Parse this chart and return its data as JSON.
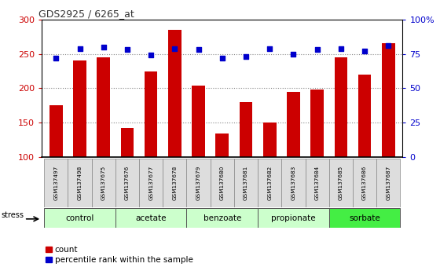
{
  "title": "GDS2925 / 6265_at",
  "samples": [
    "GSM137497",
    "GSM137498",
    "GSM137675",
    "GSM137676",
    "GSM137677",
    "GSM137678",
    "GSM137679",
    "GSM137680",
    "GSM137681",
    "GSM137682",
    "GSM137683",
    "GSM137684",
    "GSM137685",
    "GSM137686",
    "GSM137687"
  ],
  "counts": [
    175,
    240,
    245,
    142,
    224,
    285,
    204,
    134,
    180,
    150,
    195,
    198,
    245,
    220,
    265
  ],
  "percentiles": [
    72,
    79,
    80,
    78,
    74,
    79,
    78,
    72,
    73,
    79,
    75,
    78,
    79,
    77,
    81
  ],
  "groups": [
    {
      "name": "control",
      "start": 0,
      "end": 3
    },
    {
      "name": "acetate",
      "start": 3,
      "end": 6
    },
    {
      "name": "benzoate",
      "start": 6,
      "end": 9
    },
    {
      "name": "propionate",
      "start": 9,
      "end": 12
    },
    {
      "name": "sorbate",
      "start": 12,
      "end": 15
    }
  ],
  "bar_color": "#cc0000",
  "dot_color": "#0000cc",
  "left_ylim": [
    100,
    300
  ],
  "left_yticks": [
    100,
    150,
    200,
    250,
    300
  ],
  "right_ylim": [
    0,
    100
  ],
  "right_yticks": [
    0,
    25,
    50,
    75,
    100
  ],
  "right_yticklabels": [
    "0",
    "25",
    "50",
    "75",
    "100%"
  ],
  "hlines": [
    150,
    200,
    250
  ],
  "title_color": "#333333",
  "left_tick_color": "#cc0000",
  "right_tick_color": "#0000cc",
  "group_color_light": "#ccffcc",
  "group_color_dark": "#44ee44",
  "sorbate_group": "sorbate"
}
